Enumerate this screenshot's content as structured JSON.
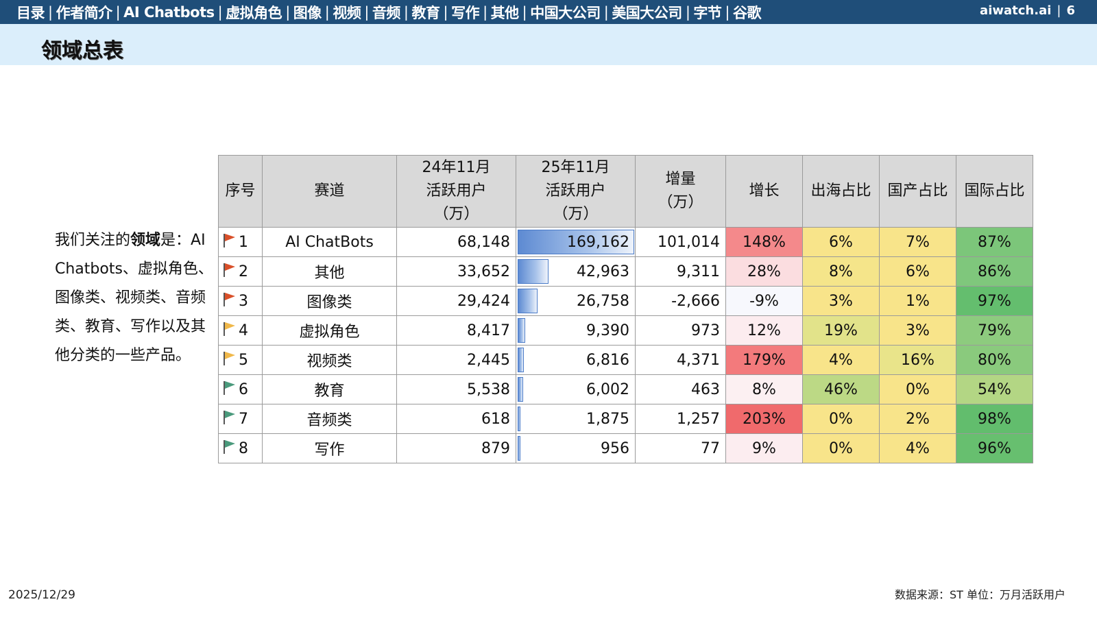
{
  "nav": {
    "items": [
      "目录",
      "作者简介",
      "AI Chatbots",
      "虚拟角色",
      "图像",
      "视频",
      "音频",
      "教育",
      "写作",
      "其他",
      "中国大公司",
      "美国大公司",
      "字节",
      "谷歌"
    ],
    "separator": "|"
  },
  "brand": {
    "site": "aiwatch.ai",
    "page_number": "6"
  },
  "page_title": "领域总表",
  "intro": {
    "prefix": "我们关注的",
    "bold": "领域",
    "suffix": "是：AI Chatbots、虚拟角色、 图像类、视频类、音频类、教育、写作以及其他分类的一些产品。"
  },
  "table": {
    "headers": {
      "rank": "序号",
      "track": "赛道",
      "mau24": [
        "24年11月",
        "活跃用户",
        "（万）"
      ],
      "mau25": [
        "25年11月",
        "活跃用户",
        "（万）"
      ],
      "delta": [
        "增量",
        "（万）"
      ],
      "growth": "增长",
      "overseas": "出海占比",
      "domestic": "国产占比",
      "international": "国际占比"
    },
    "rows": [
      {
        "rank": "1",
        "flag_color": "#d9502a",
        "track": "AI ChatBots",
        "mau24": "68,148",
        "mau25": "169,162",
        "bar_fraction": 1.0,
        "delta": "101,014",
        "growth": "148%",
        "growth_color": "#f4898b",
        "overseas": "6%",
        "overseas_color": "#f8e48a",
        "domestic": "7%",
        "domestic_color": "#f8e48a",
        "international": "87%",
        "international_color": "#7cc67a"
      },
      {
        "rank": "2",
        "flag_color": "#d9502a",
        "track": "其他",
        "mau24": "33,652",
        "mau25": "42,963",
        "bar_fraction": 0.254,
        "delta": "9,311",
        "growth": "28%",
        "growth_color": "#fbdde0",
        "overseas": "8%",
        "overseas_color": "#f5e58a",
        "domestic": "6%",
        "domestic_color": "#f8e48a",
        "international": "86%",
        "international_color": "#7fc77c"
      },
      {
        "rank": "3",
        "flag_color": "#d9502a",
        "track": "图像类",
        "mau24": "29,424",
        "mau25": "26,758",
        "bar_fraction": 0.158,
        "delta": "-2,666",
        "growth": "-9%",
        "growth_color": "#f7f8fd",
        "overseas": "3%",
        "overseas_color": "#f8e48a",
        "domestic": "1%",
        "domestic_color": "#f8e48a",
        "international": "97%",
        "international_color": "#64be6e"
      },
      {
        "rank": "4",
        "flag_color": "#f0b84a",
        "track": "虚拟角色",
        "mau24": "8,417",
        "mau25": "9,390",
        "bar_fraction": 0.056,
        "delta": "973",
        "growth": "12%",
        "growth_color": "#fcecef",
        "overseas": "19%",
        "overseas_color": "#e2e38a",
        "domestic": "3%",
        "domestic_color": "#f8e48a",
        "international": "79%",
        "international_color": "#8dcb7e"
      },
      {
        "rank": "5",
        "flag_color": "#f0b84a",
        "track": "视频类",
        "mau24": "2,445",
        "mau25": "6,816",
        "bar_fraction": 0.04,
        "delta": "4,371",
        "growth": "179%",
        "growth_color": "#f37a7c",
        "overseas": "4%",
        "overseas_color": "#f8e48a",
        "domestic": "16%",
        "domestic_color": "#e9e48a",
        "international": "80%",
        "international_color": "#8aca7d"
      },
      {
        "rank": "6",
        "flag_color": "#4a9a7c",
        "track": "教育",
        "mau24": "5,538",
        "mau25": "6,002",
        "bar_fraction": 0.035,
        "delta": "463",
        "growth": "8%",
        "growth_color": "#fcf0f2",
        "overseas": "46%",
        "overseas_color": "#bcd985",
        "domestic": "0%",
        "domestic_color": "#f8e48a",
        "international": "54%",
        "international_color": "#b3d684"
      },
      {
        "rank": "7",
        "flag_color": "#4a9a7c",
        "track": "音频类",
        "mau24": "618",
        "mau25": "1,875",
        "bar_fraction": 0.011,
        "delta": "1,257",
        "growth": "203%",
        "growth_color": "#f06a6c",
        "overseas": "0%",
        "overseas_color": "#f8e48a",
        "domestic": "2%",
        "domestic_color": "#f8e48a",
        "international": "98%",
        "international_color": "#62bd6d"
      },
      {
        "rank": "8",
        "flag_color": "#4a9a7c",
        "track": "写作",
        "mau24": "879",
        "mau25": "956",
        "bar_fraction": 0.006,
        "delta": "77",
        "growth": "9%",
        "growth_color": "#fcedf0",
        "overseas": "0%",
        "overseas_color": "#f8e48a",
        "domestic": "4%",
        "domestic_color": "#f8e48a",
        "international": "96%",
        "international_color": "#67bf6f"
      }
    ]
  },
  "footer": {
    "date": "2025/12/29",
    "source": "数据来源：ST  单位：万月活跃用户"
  }
}
